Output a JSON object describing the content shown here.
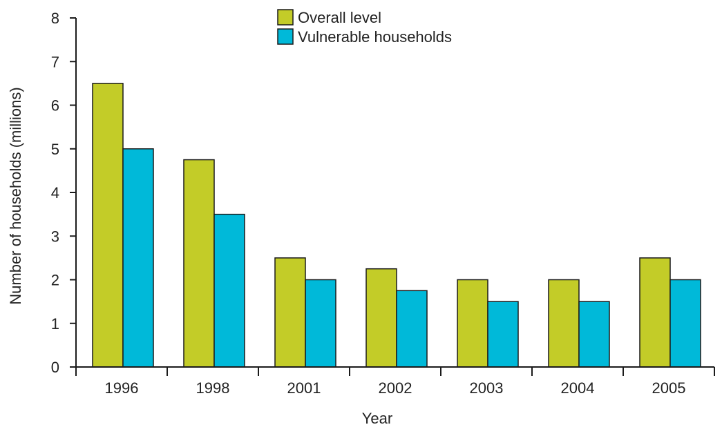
{
  "chart_data": {
    "type": "bar",
    "categories": [
      "1996",
      "1998",
      "2001",
      "2002",
      "2003",
      "2004",
      "2005"
    ],
    "series": [
      {
        "name": "Overall level",
        "values": [
          6.5,
          4.75,
          2.5,
          2.25,
          2.0,
          2.0,
          2.5
        ],
        "color": "#c3cc28"
      },
      {
        "name": "Vulnerable households",
        "values": [
          5.0,
          3.5,
          2.0,
          1.75,
          1.5,
          1.5,
          2.0
        ],
        "color": "#00b9d9"
      }
    ],
    "xlabel": "Year",
    "ylabel": "Number of households (millions)",
    "ylim": [
      0,
      8
    ],
    "yticks": [
      "0",
      "1",
      "2",
      "3",
      "4",
      "5",
      "6",
      "7",
      "8"
    ],
    "grid": false,
    "legend_position": "top-center"
  }
}
